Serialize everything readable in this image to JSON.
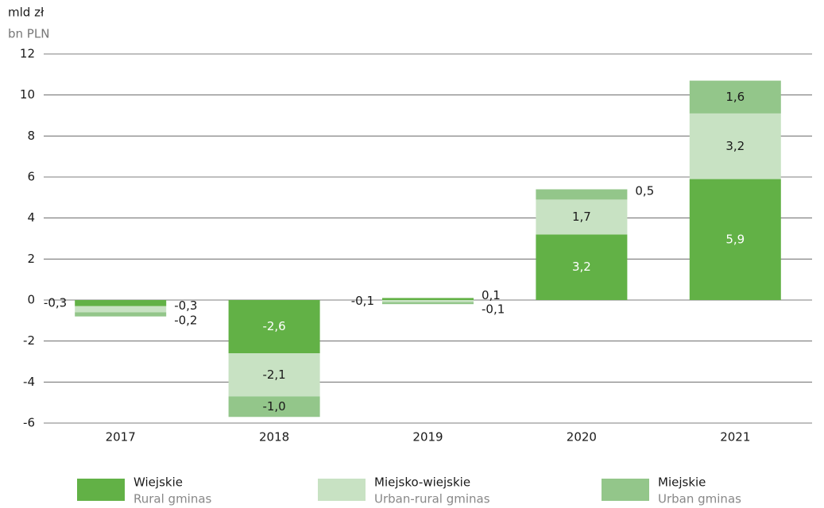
{
  "chart_data": {
    "type": "stacked-bar",
    "y_label": "mld zł",
    "y_label_en": "bn PLN",
    "categories": [
      "2017",
      "2018",
      "2019",
      "2020",
      "2021"
    ],
    "series": [
      {
        "name": "Wiejskie",
        "name_en": "Rural gminas",
        "color": "#62b146",
        "values": [
          -0.3,
          -2.6,
          0.1,
          3.2,
          5.9
        ],
        "value_labels": [
          "-0,3",
          "-2,6",
          "0,1",
          "3,2",
          "5,9"
        ]
      },
      {
        "name": "Miejsko-wiejskie",
        "name_en": "Urban-rural gminas",
        "color": "#c8e2c3",
        "values": [
          -0.3,
          -2.1,
          -0.1,
          1.7,
          3.2
        ],
        "value_labels": [
          "-0,3",
          "-2,1",
          "-0,1",
          "1,7",
          "3,2"
        ]
      },
      {
        "name": "Miejskie",
        "name_en": "Urban gminas",
        "color": "#93c68a",
        "values": [
          -0.2,
          -1.0,
          -0.1,
          0.5,
          1.6
        ],
        "value_labels": [
          "-0,2",
          "-1,0",
          "-0,1",
          "0,5",
          "1,6"
        ]
      }
    ],
    "ylim": [
      -6,
      12
    ],
    "yticks": [
      -6,
      -4,
      -2,
      0,
      2,
      4,
      6,
      8,
      10,
      12
    ],
    "grid": true
  }
}
